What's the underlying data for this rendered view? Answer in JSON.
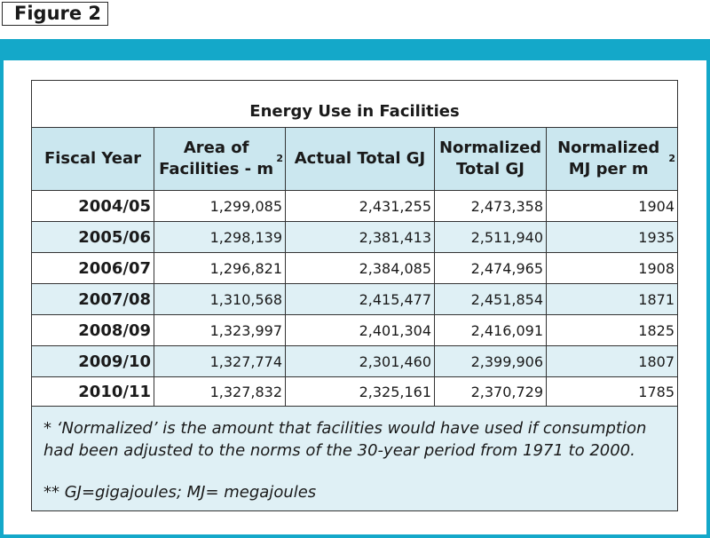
{
  "figure_label": "Figure 2",
  "chart_data": {
    "type": "table",
    "title": "Energy Use in Facilities",
    "columns": [
      {
        "label": "Fiscal Year"
      },
      {
        "label": "Area of Facilities - m",
        "sup": "2"
      },
      {
        "label": "Actual Total GJ"
      },
      {
        "label": "Normalized Total GJ"
      },
      {
        "label": "Normalized MJ per m",
        "sup": "2"
      }
    ],
    "rows": [
      {
        "year": "2004/05",
        "area": "1,299,085",
        "actual": "2,431,255",
        "normalized": "2,473,358",
        "mj_per_m2": "1904"
      },
      {
        "year": "2005/06",
        "area": "1,298,139",
        "actual": "2,381,413",
        "normalized": "2,511,940",
        "mj_per_m2": "1935"
      },
      {
        "year": "2006/07",
        "area": "1,296,821",
        "actual": "2,384,085",
        "normalized": "2,474,965",
        "mj_per_m2": "1908"
      },
      {
        "year": "2007/08",
        "area": "1,310,568",
        "actual": "2,415,477",
        "normalized": "2,451,854",
        "mj_per_m2": "1871"
      },
      {
        "year": "2008/09",
        "area": "1,323,997",
        "actual": "2,401,304",
        "normalized": "2,416,091",
        "mj_per_m2": "1825"
      },
      {
        "year": "2009/10",
        "area": "1,327,774",
        "actual": "2,301,460",
        "normalized": "2,399,906",
        "mj_per_m2": "1807"
      },
      {
        "year": "2010/11",
        "area": "1,327,832",
        "actual": "2,325,161",
        "normalized": "2,370,729",
        "mj_per_m2": "1785"
      }
    ],
    "footnotes": [
      "* ‘Normalized’ is the amount that facilities would have used if consumption had been adjusted to the norms of the 30-year period from 1971 to 2000.",
      "** GJ=gigajoules; MJ= megajoules"
    ]
  },
  "colors": {
    "frame": "#14a8c9",
    "header_fill": "#cbe7ef",
    "alt_row_fill": "#dff0f5"
  }
}
